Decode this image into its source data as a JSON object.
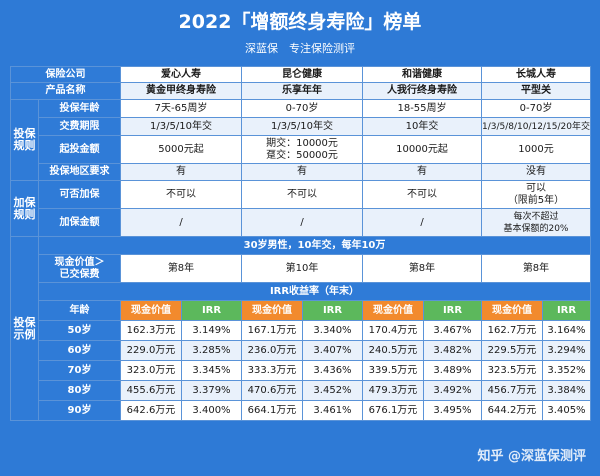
{
  "header": {
    "title": "2022「增额终身寿险」榜单",
    "subtitle": "深蓝保　专注保险测评"
  },
  "table": {
    "head_company": "保险公司",
    "head_product": "产品名称",
    "companies": [
      "爱心人寿",
      "昆仑健康",
      "和谐健康",
      "长城人寿"
    ],
    "products": [
      "黄金甲终身寿险",
      "乐享年年",
      "人我行终身寿险",
      "平型关"
    ],
    "section_rules": "投保规则",
    "rules": [
      {
        "label": "投保年龄",
        "values": [
          "7天-65周岁",
          "0-70岁",
          "18-55周岁",
          "0-70岁"
        ]
      },
      {
        "label": "交费期限",
        "values": [
          "1/3/5/10年交",
          "1/3/5/10年交",
          "10年交",
          "1/3/5/8/10/12/15/20年交"
        ]
      },
      {
        "label": "起投金额",
        "values": [
          "5000元起",
          "期交：10000元\n趸交：50000元",
          "10000元起",
          "1000元"
        ]
      },
      {
        "label": "投保地区要求",
        "values": [
          "有",
          "有",
          "有",
          "没有"
        ]
      }
    ],
    "section_add": "加保规则",
    "add_rules": [
      {
        "label": "可否加保",
        "values": [
          "不可以",
          "不可以",
          "不可以",
          "可以\n（限前5年）"
        ]
      },
      {
        "label": "加保金额",
        "values": [
          "/",
          "/",
          "/",
          "每次不超过\n基本保额的20%"
        ]
      }
    ],
    "section_example": "投保示例",
    "banner_case": "30岁男性，10年交，每年10万",
    "cash_exceed_label": "现金价值＞\n已交保费",
    "cash_exceed_values": [
      "第8年",
      "第10年",
      "第8年",
      "第8年"
    ],
    "banner_irr": "IRR收益率（年末）",
    "age_label": "年龄",
    "cv_label": "现金价值",
    "irr_label": "IRR",
    "rows": [
      {
        "age": "50岁",
        "values": [
          "162.3万元",
          "3.149%",
          "167.1万元",
          "3.340%",
          "170.4万元",
          "3.467%",
          "162.7万元",
          "3.164%"
        ]
      },
      {
        "age": "60岁",
        "values": [
          "229.0万元",
          "3.285%",
          "236.0万元",
          "3.407%",
          "240.5万元",
          "3.482%",
          "229.5万元",
          "3.294%"
        ]
      },
      {
        "age": "70岁",
        "values": [
          "323.0万元",
          "3.345%",
          "333.3万元",
          "3.436%",
          "339.5万元",
          "3.489%",
          "323.5万元",
          "3.352%"
        ]
      },
      {
        "age": "80岁",
        "values": [
          "455.6万元",
          "3.379%",
          "470.6万元",
          "3.452%",
          "479.3万元",
          "3.492%",
          "456.7万元",
          "3.384%"
        ]
      },
      {
        "age": "90岁",
        "values": [
          "642.6万元",
          "3.400%",
          "664.1万元",
          "3.461%",
          "676.1万元",
          "3.495%",
          "644.2万元",
          "3.405%"
        ]
      }
    ]
  },
  "watermark": "知乎 @深蓝保测评"
}
